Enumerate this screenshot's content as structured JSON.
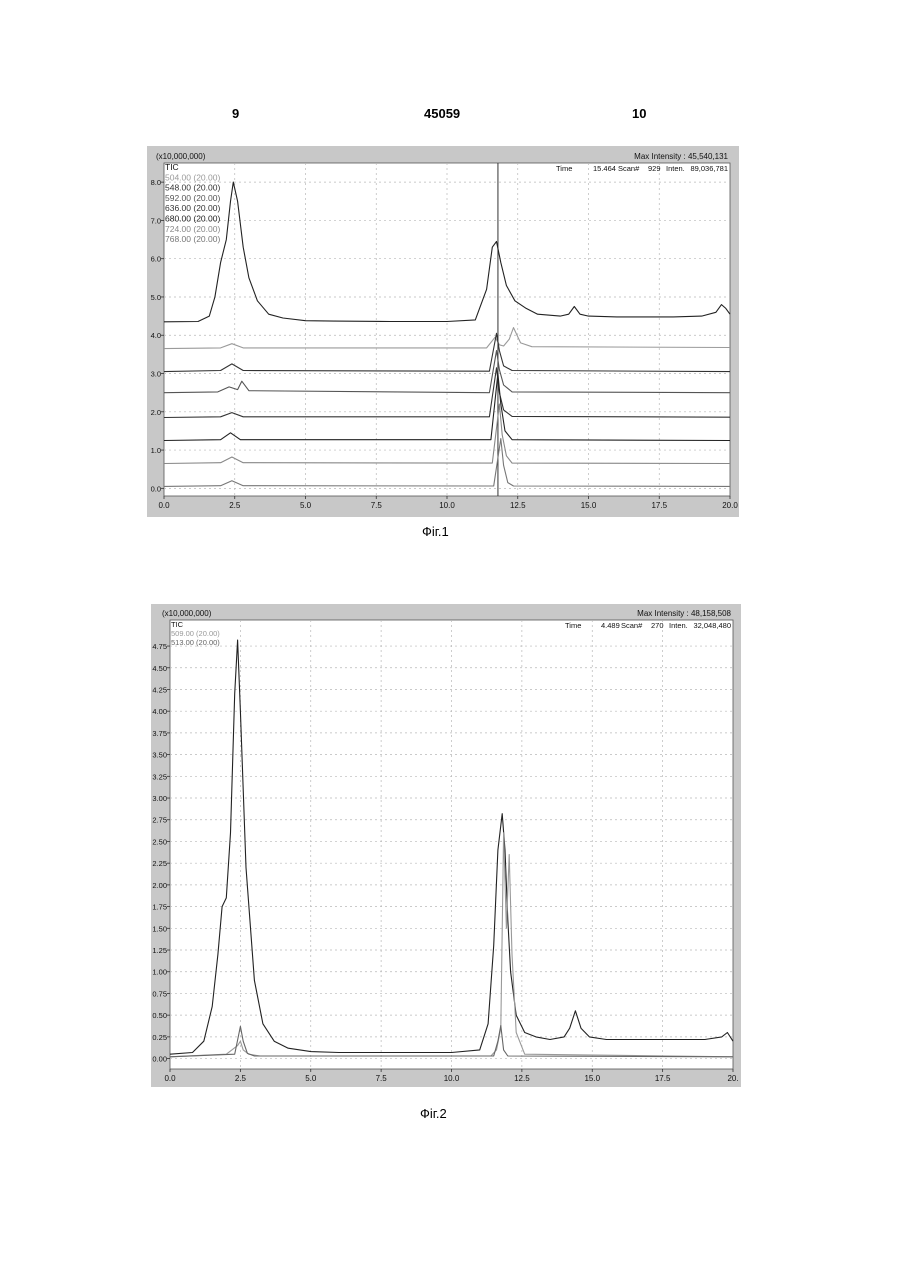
{
  "header": {
    "left": "9",
    "center": "45059",
    "right": "10"
  },
  "figures": [
    {
      "caption": "Фіг.1"
    },
    {
      "caption": "Фіг.2"
    }
  ],
  "chart_data": [
    {
      "type": "line",
      "multiplier_label": "(x10,000,000)",
      "max_intensity": "Max Intensity : 45,540,131",
      "readout": {
        "time_label": "Time",
        "time": "15.464",
        "scan_label": "Scan#",
        "scan": "929",
        "inten_label": "Inten.",
        "inten": "89,036,781"
      },
      "legend": [
        "TIC",
        "504.00 (20.00)",
        "548.00 (20.00)",
        "592.00 (20.00)",
        "636.00 (20.00)",
        "680.00 (20.00)",
        "724.00 (20.00)",
        "768.00 (20.00)"
      ],
      "x_ticks": [
        "0.0",
        "2.5",
        "5.0",
        "7.5",
        "10.0",
        "12.5",
        "15.0",
        "17.5",
        "20.0"
      ],
      "y_ticks": [
        "0.0",
        "1.0",
        "2.0",
        "3.0",
        "4.0",
        "5.0",
        "6.0",
        "7.0",
        "8.0"
      ],
      "xlim": [
        0,
        20
      ],
      "ylim": [
        -0.2,
        8.5
      ],
      "cursor_x": 11.8,
      "grid": true,
      "series": [
        {
          "color": "#222222",
          "x": [
            0,
            1.2,
            1.6,
            1.8,
            2.0,
            2.2,
            2.35,
            2.45,
            2.6,
            2.8,
            3.0,
            3.3,
            3.7,
            4.2,
            5,
            6,
            8,
            10,
            11,
            11.4,
            11.6,
            11.75,
            11.9,
            12.1,
            12.4,
            12.8,
            13.2,
            14.0,
            14.3,
            14.5,
            14.7,
            15.0,
            16,
            17,
            18,
            19,
            19.5,
            19.7,
            19.85,
            20
          ],
          "y": [
            4.35,
            4.36,
            4.5,
            5.0,
            5.9,
            6.5,
            7.5,
            8.0,
            7.5,
            6.3,
            5.5,
            4.9,
            4.55,
            4.45,
            4.38,
            4.37,
            4.36,
            4.36,
            4.4,
            5.2,
            6.3,
            6.45,
            5.9,
            5.3,
            4.9,
            4.7,
            4.55,
            4.5,
            4.55,
            4.75,
            4.55,
            4.5,
            4.48,
            4.48,
            4.48,
            4.5,
            4.6,
            4.8,
            4.7,
            4.55
          ]
        },
        {
          "color": "#9a9a9a",
          "x": [
            0,
            2.0,
            2.4,
            2.8,
            11.4,
            11.7,
            11.85,
            12.0,
            12.2,
            12.35,
            12.6,
            13.0,
            20
          ],
          "y": [
            3.65,
            3.67,
            3.78,
            3.67,
            3.67,
            3.95,
            3.75,
            3.72,
            3.9,
            4.2,
            3.8,
            3.7,
            3.68
          ]
        },
        {
          "color": "#333333",
          "x": [
            0,
            2.0,
            2.4,
            2.8,
            11.5,
            11.75,
            11.85,
            12.0,
            12.3,
            20
          ],
          "y": [
            3.05,
            3.08,
            3.25,
            3.08,
            3.06,
            4.05,
            3.6,
            3.2,
            3.08,
            3.05
          ]
        },
        {
          "color": "#555555",
          "x": [
            0,
            1.9,
            2.3,
            2.6,
            2.75,
            3.0,
            11.5,
            11.75,
            11.85,
            12.0,
            12.3,
            20
          ],
          "y": [
            2.5,
            2.52,
            2.65,
            2.58,
            2.8,
            2.55,
            2.5,
            3.6,
            3.1,
            2.7,
            2.52,
            2.5
          ]
        },
        {
          "color": "#333333",
          "x": [
            0,
            2.0,
            2.4,
            2.8,
            11.5,
            11.75,
            11.85,
            12.0,
            12.3,
            20
          ],
          "y": [
            1.85,
            1.87,
            1.98,
            1.87,
            1.87,
            3.15,
            2.5,
            2.05,
            1.88,
            1.86
          ]
        },
        {
          "color": "#222222",
          "x": [
            0,
            2.0,
            2.35,
            2.7,
            11.55,
            11.8,
            11.9,
            12.05,
            12.3,
            20
          ],
          "y": [
            1.25,
            1.27,
            1.45,
            1.27,
            1.27,
            3.0,
            2.2,
            1.5,
            1.27,
            1.25
          ]
        },
        {
          "color": "#888888",
          "x": [
            0,
            2.0,
            2.4,
            2.8,
            11.6,
            11.85,
            11.95,
            12.1,
            12.3,
            20
          ],
          "y": [
            0.65,
            0.67,
            0.82,
            0.67,
            0.66,
            2.2,
            1.4,
            0.85,
            0.66,
            0.65
          ]
        },
        {
          "color": "#777777",
          "x": [
            0,
            2.0,
            2.4,
            2.8,
            11.65,
            11.9,
            12.0,
            12.15,
            12.35,
            20
          ],
          "y": [
            0.05,
            0.07,
            0.2,
            0.07,
            0.06,
            1.3,
            0.6,
            0.15,
            0.06,
            0.05
          ]
        }
      ]
    },
    {
      "type": "line",
      "multiplier_label": "(x10,000,000)",
      "max_intensity": "Max Intensity : 48,158,508",
      "readout": {
        "time_label": "Time",
        "time": "4.489",
        "scan_label": "Scan#",
        "scan": "270",
        "inten_label": "Inten.",
        "inten": "32,048,480"
      },
      "legend": [
        "TIC",
        "509.00 (20.00)",
        "513.00 (20.00)"
      ],
      "x_ticks": [
        "0.0",
        "2.5",
        "5.0",
        "7.5",
        "10.0",
        "12.5",
        "15.0",
        "17.5",
        "20."
      ],
      "y_ticks": [
        "0.00",
        "0.25",
        "0.50",
        "0.75",
        "1.00",
        "1.25",
        "1.50",
        "1.75",
        "2.00",
        "2.25",
        "2.50",
        "2.75",
        "3.00",
        "3.25",
        "3.50",
        "3.75",
        "4.00",
        "4.25",
        "4.50",
        "4.75"
      ],
      "xlim": [
        0,
        20
      ],
      "ylim": [
        -0.12,
        5.05
      ],
      "grid": true,
      "series": [
        {
          "color": "#222222",
          "x": [
            0,
            0.8,
            1.2,
            1.5,
            1.7,
            1.85,
            2.0,
            2.15,
            2.3,
            2.4,
            2.5,
            2.7,
            3.0,
            3.3,
            3.7,
            4.2,
            5,
            6,
            8,
            10,
            11.0,
            11.3,
            11.5,
            11.65,
            11.8,
            11.9,
            12.0,
            12.1,
            12.3,
            12.6,
            13.0,
            13.5,
            14.0,
            14.2,
            14.4,
            14.6,
            14.9,
            15.5,
            17,
            19,
            19.6,
            19.8,
            20
          ],
          "y": [
            0.05,
            0.07,
            0.2,
            0.6,
            1.2,
            1.75,
            1.85,
            2.6,
            4.2,
            4.82,
            4.0,
            2.2,
            0.9,
            0.4,
            0.2,
            0.12,
            0.08,
            0.07,
            0.07,
            0.07,
            0.1,
            0.4,
            1.3,
            2.4,
            2.82,
            2.4,
            1.6,
            1.0,
            0.5,
            0.3,
            0.25,
            0.22,
            0.25,
            0.35,
            0.55,
            0.35,
            0.25,
            0.22,
            0.22,
            0.22,
            0.25,
            0.3,
            0.2
          ]
        },
        {
          "color": "#999999",
          "x": [
            0,
            2.0,
            2.4,
            2.5,
            2.6,
            2.8,
            3.2,
            11.4,
            11.6,
            11.75,
            11.85,
            11.95,
            12.05,
            12.15,
            12.3,
            12.6,
            20
          ],
          "y": [
            0.02,
            0.05,
            0.15,
            0.2,
            0.1,
            0.05,
            0.03,
            0.03,
            0.1,
            0.35,
            2.6,
            1.5,
            2.35,
            1.2,
            0.3,
            0.05,
            0.02
          ]
        },
        {
          "color": "#666666",
          "x": [
            0,
            2.3,
            2.5,
            2.6,
            2.75,
            3.0,
            11.5,
            11.65,
            11.75,
            11.85,
            12.0,
            20
          ],
          "y": [
            0.02,
            0.05,
            0.37,
            0.2,
            0.06,
            0.03,
            0.03,
            0.2,
            0.38,
            0.1,
            0.03,
            0.02
          ]
        }
      ]
    }
  ]
}
